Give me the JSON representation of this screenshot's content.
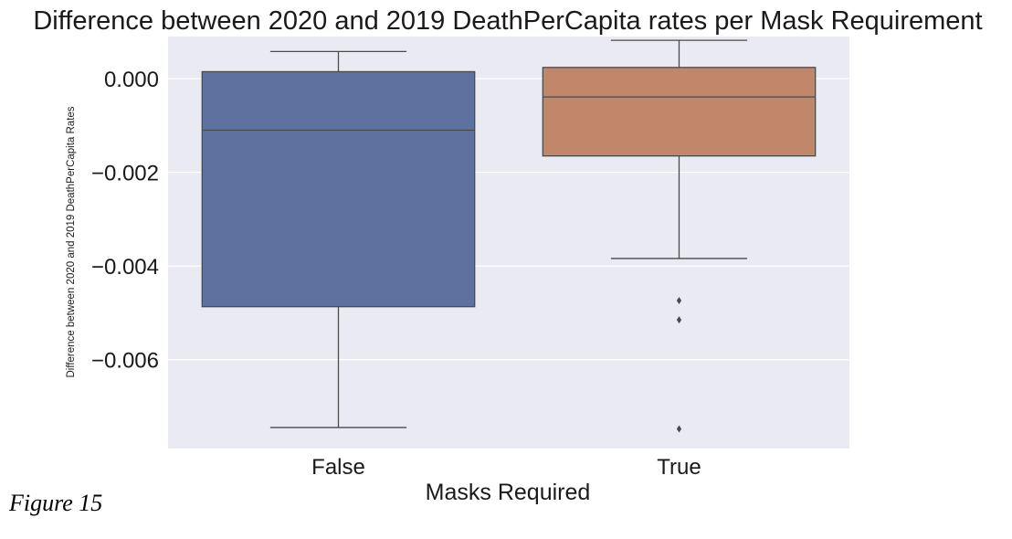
{
  "chart_data": {
    "type": "box",
    "title": "Difference between 2020 and 2019 DeathPerCapita rates per Mask Requirement",
    "xlabel": "Masks Required",
    "ylabel": "Difference between 2020 and 2019 DeathPerCapita Rates",
    "ylim": [
      -0.0079,
      0.0009
    ],
    "yticks": [
      0.0,
      -0.002,
      -0.004,
      -0.006
    ],
    "ytick_labels": [
      "0.000",
      "−0.002",
      "−0.004",
      "−0.006"
    ],
    "grid": true,
    "categories": [
      "False",
      "True"
    ],
    "boxes": [
      {
        "category": "False",
        "color": "#5e72a0",
        "whisker_low": -0.00745,
        "q1": -0.00487,
        "median": -0.0011,
        "q3": 0.00015,
        "whisker_high": 0.00058,
        "outliers": []
      },
      {
        "category": "True",
        "color": "#c1876a",
        "whisker_low": -0.00384,
        "q1": -0.00165,
        "median": -0.00039,
        "q3": 0.00024,
        "whisker_high": 0.00082,
        "outliers": [
          -0.00474,
          -0.00515,
          -0.00748
        ]
      }
    ]
  },
  "caption": "Figure 15"
}
